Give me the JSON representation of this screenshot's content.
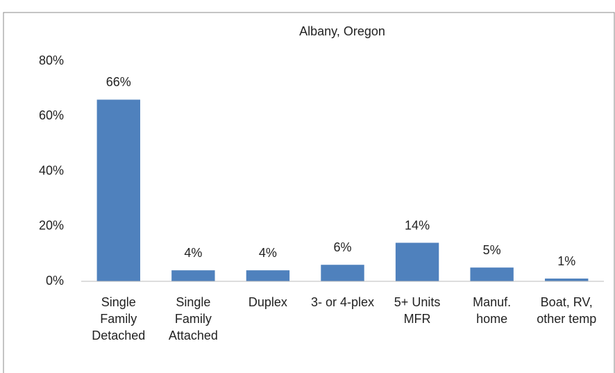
{
  "chart_data": {
    "type": "bar",
    "title": "Albany, Oregon",
    "categories": [
      [
        "Single",
        "Family",
        "Detached"
      ],
      [
        "Single",
        "Family",
        "Attached"
      ],
      [
        "Duplex"
      ],
      [
        "3- or 4-plex"
      ],
      [
        "5+ Units",
        "MFR"
      ],
      [
        "Manuf.",
        "home"
      ],
      [
        "Boat, RV,",
        "other temp"
      ]
    ],
    "values": [
      66,
      4,
      4,
      6,
      14,
      5,
      1
    ],
    "value_labels": [
      "66%",
      "4%",
      "4%",
      "6%",
      "14%",
      "5%",
      "1%"
    ],
    "color": "#4f81bd",
    "ylim": [
      0,
      80
    ],
    "yticks": [
      {
        "value": 0,
        "label": "0%"
      },
      {
        "value": 20,
        "label": "20%"
      },
      {
        "value": 40,
        "label": "40%"
      },
      {
        "value": 60,
        "label": "60%"
      },
      {
        "value": 80,
        "label": "80%"
      }
    ],
    "grid": false
  }
}
